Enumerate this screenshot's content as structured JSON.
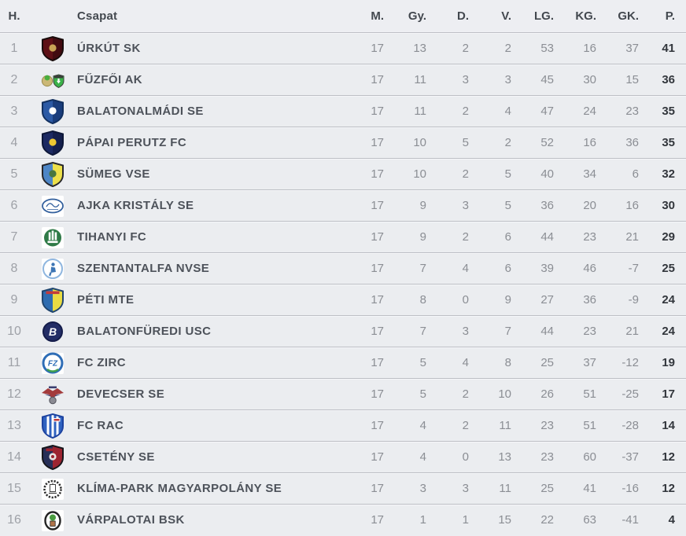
{
  "theme": {
    "header_bg": "#edeef2",
    "row_bg": "#ebedf0",
    "separator": "#bdbfc5",
    "header_text": "#43484f",
    "pos_text": "#9ea1a7",
    "team_text": "#4d525a",
    "num_text": "#8b8e94",
    "pts_text": "#32363c"
  },
  "table": {
    "columns": [
      {
        "key": "pos",
        "label": "H."
      },
      {
        "key": "team",
        "label": "Csapat"
      },
      {
        "key": "m",
        "label": "M."
      },
      {
        "key": "gy",
        "label": "Gy."
      },
      {
        "key": "d",
        "label": "D."
      },
      {
        "key": "v",
        "label": "V."
      },
      {
        "key": "lg",
        "label": "LG."
      },
      {
        "key": "kg",
        "label": "KG."
      },
      {
        "key": "gk",
        "label": "GK."
      },
      {
        "key": "p",
        "label": "P."
      }
    ],
    "rows": [
      {
        "pos": "1",
        "team": "ÚRKÚT SK",
        "icon": "urkut-sk-crest-icon",
        "logo": {
          "kind": "shield",
          "c1": "#5e1016",
          "c2": "#420b10",
          "border": "#180b0b",
          "accent": "#c9a455"
        },
        "stats": {
          "m": "17",
          "gy": "13",
          "d": "2",
          "v": "2",
          "lg": "53",
          "kg": "16",
          "gk": "37",
          "p": "41"
        }
      },
      {
        "pos": "2",
        "team": "FŰZFŐI AK",
        "icon": "fuzfoi-ak-crest-icon",
        "logo": {
          "kind": "double",
          "c1": "#cbb876",
          "c1b": "#49ae3e",
          "c2": "#3bb24a",
          "c2b": "#3a3f3a"
        },
        "stats": {
          "m": "17",
          "gy": "11",
          "d": "3",
          "v": "3",
          "lg": "45",
          "kg": "30",
          "gk": "15",
          "p": "36"
        }
      },
      {
        "pos": "3",
        "team": "BALATONALMÁDI SE",
        "icon": "balatonalmadi-se-crest-icon",
        "logo": {
          "kind": "shield",
          "c1": "#2c5aa5",
          "c2": "#1a3d7c",
          "border": "#12305f",
          "accent": "#ffffff"
        },
        "stats": {
          "m": "17",
          "gy": "11",
          "d": "2",
          "v": "4",
          "lg": "47",
          "kg": "24",
          "gk": "23",
          "p": "35"
        }
      },
      {
        "pos": "4",
        "team": "PÁPAI PERUTZ FC",
        "icon": "papai-perutz-fc-crest-icon",
        "logo": {
          "kind": "shield",
          "c1": "#1c2a63",
          "c2": "#141f4c",
          "border": "#0d1738",
          "accent": "#eec832"
        },
        "stats": {
          "m": "17",
          "gy": "10",
          "d": "5",
          "v": "2",
          "lg": "52",
          "kg": "16",
          "gk": "36",
          "p": "35"
        }
      },
      {
        "pos": "5",
        "team": "SÜMEG VSE",
        "icon": "sumeg-vse-crest-icon",
        "logo": {
          "kind": "shield",
          "c1": "#4d86c6",
          "c2": "#ece04b",
          "border": "#26262a",
          "accent": "#47763f"
        },
        "stats": {
          "m": "17",
          "gy": "10",
          "d": "2",
          "v": "5",
          "lg": "40",
          "kg": "34",
          "gk": "6",
          "p": "32"
        }
      },
      {
        "pos": "6",
        "team": "AJKA KRISTÁLY SE",
        "icon": "ajka-kristaly-se-crest-icon",
        "logo": {
          "kind": "oval",
          "c1": "#ffffff",
          "border": "#33609d"
        },
        "stats": {
          "m": "17",
          "gy": "9",
          "d": "3",
          "v": "5",
          "lg": "36",
          "kg": "20",
          "gk": "16",
          "p": "30"
        }
      },
      {
        "pos": "7",
        "team": "TIHANYI FC",
        "icon": "tihanyi-fc-crest-icon",
        "logo": {
          "kind": "badge",
          "c1": "#2f7a47"
        },
        "stats": {
          "m": "17",
          "gy": "9",
          "d": "2",
          "v": "6",
          "lg": "44",
          "kg": "23",
          "gk": "21",
          "p": "29"
        }
      },
      {
        "pos": "8",
        "team": "SZENTANTALFA NVSE",
        "icon": "szentantalfa-nvse-crest-icon",
        "logo": {
          "kind": "circle",
          "c1": "#ffffff",
          "border": "#8fb6df",
          "ring": 2,
          "figure": "#3e76b5",
          "plate": true
        },
        "stats": {
          "m": "17",
          "gy": "7",
          "d": "4",
          "v": "6",
          "lg": "39",
          "kg": "46",
          "gk": "-7",
          "p": "25"
        }
      },
      {
        "pos": "9",
        "team": "PÉTI MTE",
        "icon": "peti-mte-crest-icon",
        "logo": {
          "kind": "shield",
          "c1": "#2e6cb0",
          "c2": "#e9dc43",
          "border": "#20456e",
          "band": "#c23b3b"
        },
        "stats": {
          "m": "17",
          "gy": "8",
          "d": "0",
          "v": "9",
          "lg": "27",
          "kg": "36",
          "gk": "-9",
          "p": "24"
        }
      },
      {
        "pos": "10",
        "team": "BALATONFÜREDI USC",
        "icon": "balatonfuredi-usc-crest-icon",
        "logo": {
          "kind": "circle",
          "c1": "#232d66",
          "border": "#141c4a",
          "ring": 2,
          "letter": "B",
          "letterColor": "#ffffff"
        },
        "stats": {
          "m": "17",
          "gy": "7",
          "d": "3",
          "v": "7",
          "lg": "44",
          "kg": "23",
          "gk": "21",
          "p": "24"
        }
      },
      {
        "pos": "11",
        "team": "FC ZIRC",
        "icon": "fc-zirc-crest-icon",
        "logo": {
          "kind": "circle",
          "c1": "#ffffff",
          "border": "#2e6db6",
          "ring": 3,
          "letter": "FZ",
          "letterColor": "#2e6db6",
          "letterSize": 10,
          "arc": "#3fa04c",
          "plate": true
        },
        "stats": {
          "m": "17",
          "gy": "5",
          "d": "4",
          "v": "8",
          "lg": "25",
          "kg": "37",
          "gk": "-12",
          "p": "19"
        }
      },
      {
        "pos": "12",
        "team": "DEVECSER SE",
        "icon": "devecser-se-crest-icon",
        "logo": {
          "kind": "eagle",
          "c1": "#a33b3c",
          "c2": "#3a3f70",
          "accent": "#8a8a92"
        },
        "stats": {
          "m": "17",
          "gy": "5",
          "d": "2",
          "v": "10",
          "lg": "26",
          "kg": "51",
          "gk": "-25",
          "p": "17"
        }
      },
      {
        "pos": "13",
        "team": "FC RAC",
        "icon": "fc-rac-crest-icon",
        "logo": {
          "kind": "stripes",
          "c1": "#2f62c0",
          "border": "#1d43a0",
          "accent": "#c03a3a"
        },
        "stats": {
          "m": "17",
          "gy": "4",
          "d": "2",
          "v": "11",
          "lg": "23",
          "kg": "51",
          "gk": "-28",
          "p": "14"
        }
      },
      {
        "pos": "14",
        "team": "CSETÉNY SE",
        "icon": "cseteny-se-crest-icon",
        "logo": {
          "kind": "shield",
          "c1": "#262e57",
          "c2": "#9c2430",
          "border": "#15151a",
          "band": "#9c2430",
          "accent": "#e8e3e0",
          "dot": "#9c2430"
        },
        "stats": {
          "m": "17",
          "gy": "4",
          "d": "0",
          "v": "13",
          "lg": "23",
          "kg": "60",
          "gk": "-37",
          "p": "12"
        }
      },
      {
        "pos": "15",
        "team": "KLÍMA-PARK MAGYARPOLÁNY SE",
        "icon": "klima-park-magyarpolany-se-crest-icon",
        "logo": {
          "kind": "wreath",
          "c1": "#2d2d2d"
        },
        "stats": {
          "m": "17",
          "gy": "3",
          "d": "3",
          "v": "11",
          "lg": "25",
          "kg": "41",
          "gk": "-16",
          "p": "12"
        }
      },
      {
        "pos": "16",
        "team": "VÁRPALOTAI BSK",
        "icon": "varpalotai-bsk-crest-icon",
        "logo": {
          "kind": "target",
          "c1": "#242424",
          "c2": "#4a9c3f",
          "accent": "#b0744a"
        },
        "stats": {
          "m": "17",
          "gy": "1",
          "d": "1",
          "v": "15",
          "lg": "22",
          "kg": "63",
          "gk": "-41",
          "p": "4"
        }
      }
    ]
  }
}
